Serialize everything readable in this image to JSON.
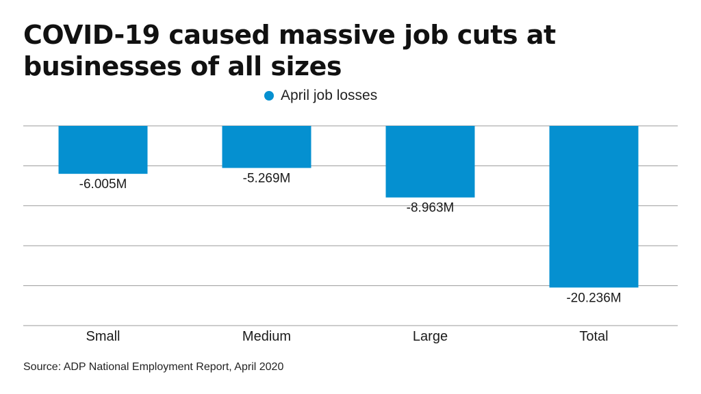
{
  "title": "COVID-19 caused massive job cuts at businesses of all sizes",
  "source": "Source: ADP National Employment Report, April 2020",
  "colors": {
    "bar": "#0590d0",
    "grid": "#9a9a9a",
    "text": "#1a1a1a"
  },
  "chart_data": {
    "type": "bar",
    "categories": [
      "Small",
      "Medium",
      "Large",
      "Total"
    ],
    "series": [
      {
        "name": "April job losses",
        "values": [
          -6.005,
          -5.269,
          -8.963,
          -20.236
        ]
      }
    ],
    "data_labels": [
      "-6.005M",
      "-5.269M",
      "-8.963M",
      "-20.236M"
    ],
    "ylim": [
      -25,
      0
    ],
    "grid": true,
    "legend": "top-center",
    "xlabel": "",
    "ylabel": ""
  }
}
